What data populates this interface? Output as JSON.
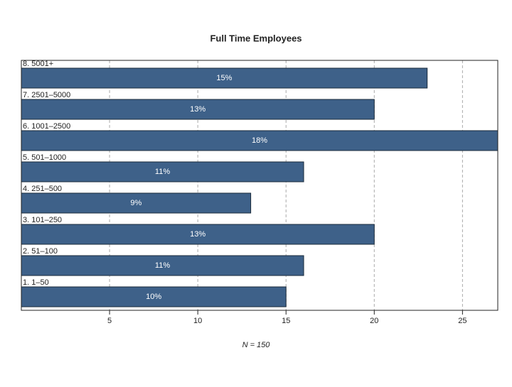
{
  "chart_data": {
    "type": "bar",
    "orientation": "horizontal",
    "title": "Full Time Employees",
    "xlabel": "N = 150",
    "categories": [
      "8. 5001+",
      "7. 2501–5000",
      "6. 1001–2500",
      "5. 501–1000",
      "4. 251–500",
      "3. 101–250",
      "2. 51–100",
      "1. 1–50"
    ],
    "values": [
      23,
      20,
      27,
      16,
      13,
      20,
      16,
      15
    ],
    "value_labels": [
      "15%",
      "13%",
      "18%",
      "11%",
      "9%",
      "13%",
      "11%",
      "10%"
    ],
    "color": "#3e6189",
    "xlim": [
      0,
      27
    ],
    "xticks": [
      5,
      10,
      15,
      20,
      25
    ],
    "grid": true
  }
}
